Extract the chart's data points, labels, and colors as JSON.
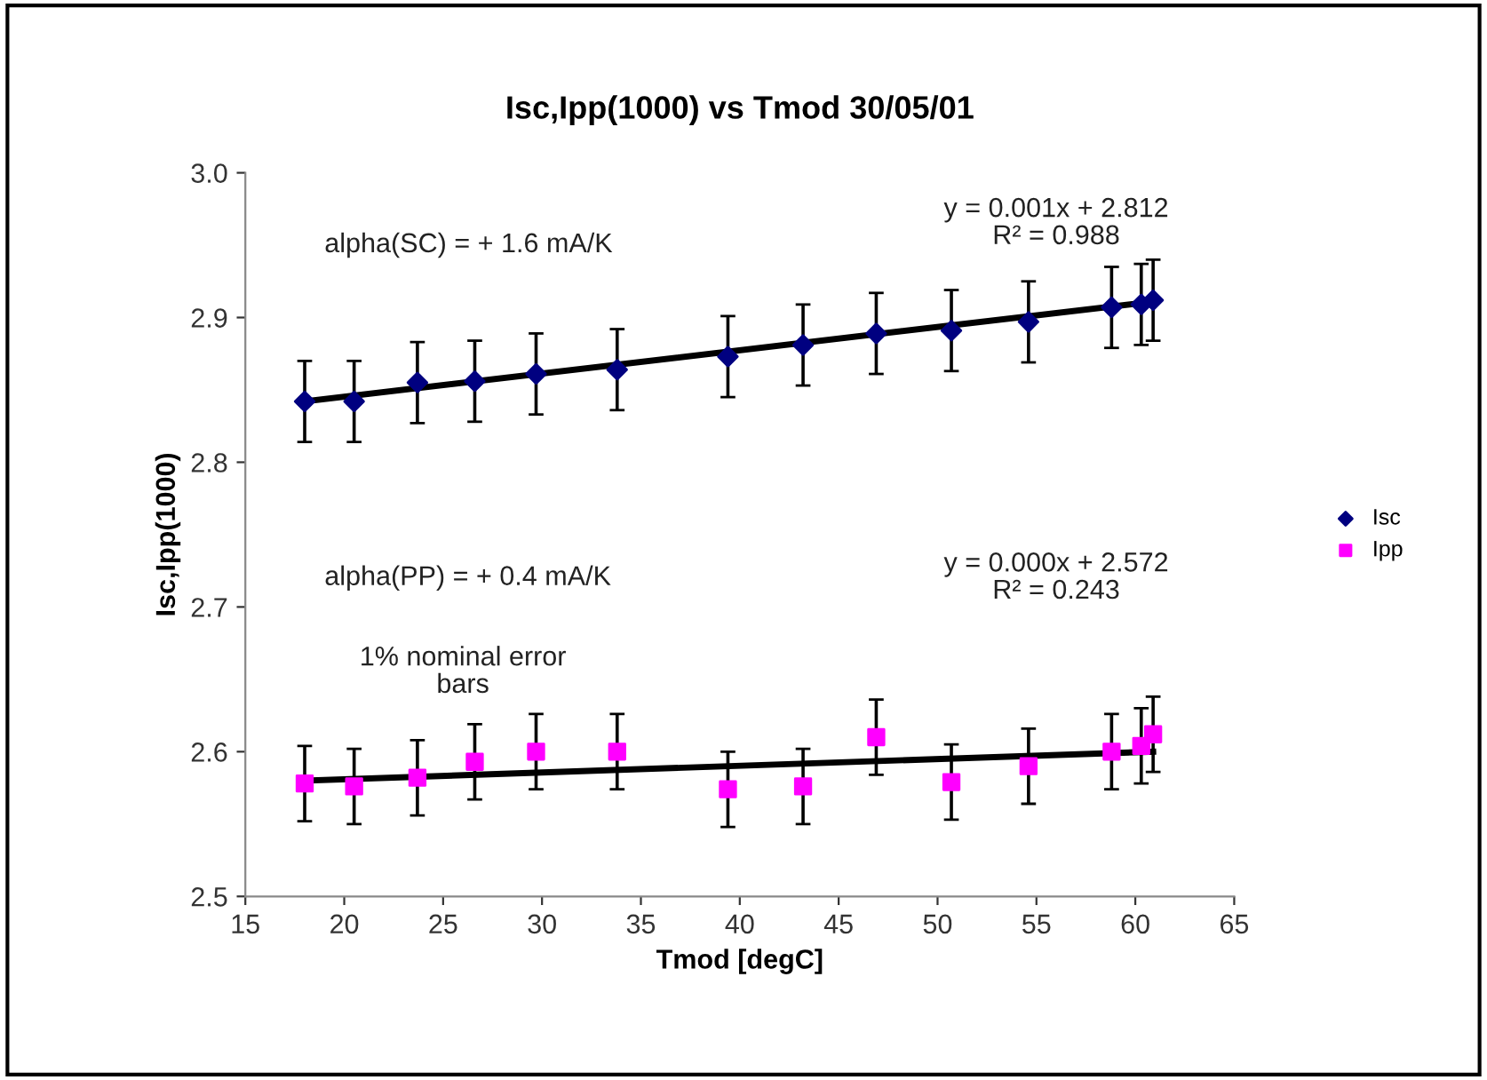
{
  "chart_data": {
    "type": "scatter",
    "title": "Isc,Ipp(1000) vs Tmod 30/05/01",
    "xlabel": "Tmod [degC]",
    "ylabel": "Isc,Ipp(1000)",
    "xlim": [
      15,
      65
    ],
    "xticks": [
      15,
      20,
      25,
      30,
      35,
      40,
      45,
      50,
      55,
      60,
      65
    ],
    "ylim": [
      2.5,
      3.0
    ],
    "yticks": [
      {
        "value": 2.5,
        "label": "2.5"
      },
      2.6,
      2.7,
      2.8,
      2.9,
      {
        "value": 3.0,
        "label": "3.0"
      }
    ],
    "grid": false,
    "legend": "right",
    "annotations": [
      "alpha(SC) = + 1.6 mA/K",
      "y = 0.001x + 2.812\nR² = 0.988",
      "alpha(PP) = + 0.4 mA/K",
      "y = 0.000x + 2.572\nR² = 0.243",
      "1% nominal error\nbars"
    ],
    "series": [
      {
        "type": "line",
        "color": "#000000",
        "marker": "none",
        "x": [
          18.0,
          60.9
        ],
        "values": [
          2.842,
          2.911
        ]
      },
      {
        "type": "line",
        "color": "#000000",
        "marker": "none",
        "x": [
          18.0,
          60.9
        ],
        "values": [
          2.58,
          2.6
        ]
      },
      {
        "name": "Isc",
        "color": "#000080",
        "marker": "diamond",
        "x": [
          18.0,
          20.5,
          23.7,
          26.6,
          29.7,
          33.8,
          39.4,
          43.2,
          46.9,
          50.7,
          54.6,
          58.8,
          60.3,
          60.9
        ],
        "values": [
          2.842,
          2.842,
          2.855,
          2.856,
          2.861,
          2.864,
          2.873,
          2.881,
          2.889,
          2.891,
          2.897,
          2.907,
          2.909,
          2.912
        ],
        "errors": [
          0.028,
          0.028,
          0.028,
          0.028,
          0.028,
          0.028,
          0.028,
          0.028,
          0.028,
          0.028,
          0.028,
          0.028,
          0.028,
          0.028
        ]
      },
      {
        "name": "Ipp",
        "color": "#ff00ff",
        "marker": "square",
        "x": [
          18.0,
          20.5,
          23.7,
          26.6,
          29.7,
          33.8,
          39.4,
          43.2,
          46.9,
          50.7,
          54.6,
          58.8,
          60.3,
          60.9
        ],
        "values": [
          2.578,
          2.576,
          2.582,
          2.593,
          2.6,
          2.6,
          2.574,
          2.576,
          2.61,
          2.579,
          2.59,
          2.6,
          2.604,
          2.612
        ],
        "errors": [
          0.026,
          0.026,
          0.026,
          0.026,
          0.026,
          0.026,
          0.026,
          0.026,
          0.026,
          0.026,
          0.026,
          0.026,
          0.026,
          0.026
        ]
      }
    ]
  }
}
